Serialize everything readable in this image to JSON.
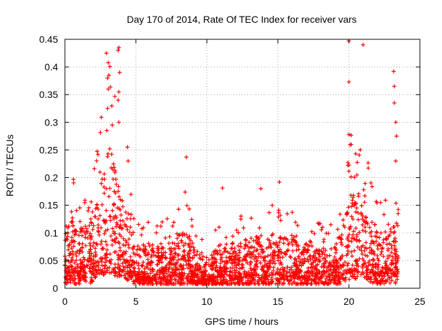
{
  "chart_data": {
    "type": "scatter",
    "title": "Day 170 of 2014, Rate Of TEC Index for receiver vars",
    "xlabel": "GPS time / hours",
    "ylabel": "ROTI / TECUs",
    "xlim": [
      0,
      25
    ],
    "ylim": [
      0,
      0.45
    ],
    "x_ticks": [
      "0",
      "5",
      "10",
      "15",
      "20",
      "25"
    ],
    "y_ticks": [
      "0",
      "0.05",
      "0.1",
      "0.15",
      "0.2",
      "0.25",
      "0.3",
      "0.35",
      "0.4",
      "0.45"
    ],
    "grid": true,
    "marker": "+",
    "color": "#ff0000",
    "series": [
      {
        "name": "ROTI",
        "approximate_profile": [
          {
            "x": 0.0,
            "y": 0.06
          },
          {
            "x": 0.5,
            "y": 0.07
          },
          {
            "x": 1.0,
            "y": 0.05
          },
          {
            "x": 1.5,
            "y": 0.06
          },
          {
            "x": 2.0,
            "y": 0.07
          },
          {
            "x": 2.5,
            "y": 0.1
          },
          {
            "x": 3.0,
            "y": 0.15
          },
          {
            "x": 3.5,
            "y": 0.12
          },
          {
            "x": 4.0,
            "y": 0.09
          },
          {
            "x": 4.5,
            "y": 0.07
          },
          {
            "x": 5.0,
            "y": 0.05
          },
          {
            "x": 6.0,
            "y": 0.04
          },
          {
            "x": 7.0,
            "y": 0.04
          },
          {
            "x": 8.0,
            "y": 0.05
          },
          {
            "x": 8.5,
            "y": 0.06
          },
          {
            "x": 9.0,
            "y": 0.04
          },
          {
            "x": 10.0,
            "y": 0.03
          },
          {
            "x": 11.0,
            "y": 0.04
          },
          {
            "x": 12.0,
            "y": 0.04
          },
          {
            "x": 13.0,
            "y": 0.05
          },
          {
            "x": 14.0,
            "y": 0.05
          },
          {
            "x": 15.0,
            "y": 0.05
          },
          {
            "x": 16.0,
            "y": 0.05
          },
          {
            "x": 17.0,
            "y": 0.04
          },
          {
            "x": 18.0,
            "y": 0.04
          },
          {
            "x": 19.0,
            "y": 0.04
          },
          {
            "x": 19.5,
            "y": 0.05
          },
          {
            "x": 20.0,
            "y": 0.09
          },
          {
            "x": 20.5,
            "y": 0.1
          },
          {
            "x": 21.0,
            "y": 0.09
          },
          {
            "x": 21.5,
            "y": 0.07
          },
          {
            "x": 22.0,
            "y": 0.06
          },
          {
            "x": 22.5,
            "y": 0.05
          },
          {
            "x": 23.0,
            "y": 0.07
          },
          {
            "x": 23.5,
            "y": 0.07
          }
        ],
        "notable_points": [
          {
            "x": 3.0,
            "y": 0.38
          },
          {
            "x": 3.05,
            "y": 0.36
          },
          {
            "x": 3.1,
            "y": 0.385
          },
          {
            "x": 3.0,
            "y": 0.325
          },
          {
            "x": 2.95,
            "y": 0.285
          },
          {
            "x": 3.75,
            "y": 0.43
          },
          {
            "x": 3.8,
            "y": 0.435
          },
          {
            "x": 3.85,
            "y": 0.39
          },
          {
            "x": 3.8,
            "y": 0.355
          },
          {
            "x": 3.75,
            "y": 0.34
          },
          {
            "x": 3.8,
            "y": 0.3
          },
          {
            "x": 4.4,
            "y": 0.255
          },
          {
            "x": 4.45,
            "y": 0.23
          },
          {
            "x": 8.55,
            "y": 0.237
          },
          {
            "x": 11.1,
            "y": 0.181
          },
          {
            "x": 13.8,
            "y": 0.18
          },
          {
            "x": 15.1,
            "y": 0.192
          },
          {
            "x": 14.6,
            "y": 0.15
          },
          {
            "x": 20.0,
            "y": 0.447
          },
          {
            "x": 20.0,
            "y": 0.373
          },
          {
            "x": 20.0,
            "y": 0.278
          },
          {
            "x": 21.0,
            "y": 0.44
          },
          {
            "x": 20.8,
            "y": 0.25
          },
          {
            "x": 23.15,
            "y": 0.392
          },
          {
            "x": 23.2,
            "y": 0.365
          },
          {
            "x": 23.2,
            "y": 0.335
          },
          {
            "x": 23.3,
            "y": 0.3
          },
          {
            "x": 23.35,
            "y": 0.275
          },
          {
            "x": 23.3,
            "y": 0.23
          }
        ]
      }
    ]
  }
}
